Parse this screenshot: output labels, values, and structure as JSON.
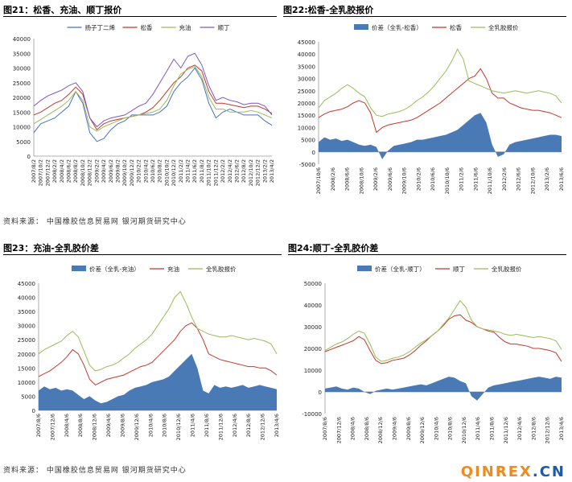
{
  "panels": {
    "p21": {
      "title": "图21：松香、充油、顺丁报价"
    },
    "p22": {
      "title": "图22:松香-全乳胶报价"
    },
    "p23": {
      "title": "图23：充油-全乳胶价差"
    },
    "p24": {
      "title": "图24:顺丁-全乳胶价差"
    }
  },
  "sources": {
    "top": "资料来源：  中国橡胶信息贸易网   银河期货研究中心",
    "bottom": "资料来源：  中国橡胶信息贸易网   银河期货研究中心"
  },
  "watermark": {
    "part1": "QINREX",
    "part2": ".CN"
  },
  "chart_data": [
    {
      "id": "chart21",
      "type": "line",
      "ylim": [
        0,
        40000
      ],
      "yticks": [
        0,
        5000,
        10000,
        15000,
        20000,
        25000,
        30000,
        35000,
        40000
      ],
      "xticks": [
        "2007/8/2",
        "2007/10/2",
        "2007/12/2",
        "2008/2/2",
        "2008/4/2",
        "2008/6/2",
        "2008/8/2",
        "2008/10/2",
        "2008/12/2",
        "2009/2/2",
        "2009/4/2",
        "2009/6/2",
        "2009/8/2",
        "2009/10/2",
        "2009/12/2",
        "2010/2/2",
        "2010/4/2",
        "2010/6/2",
        "2010/8/2",
        "2010/10/2",
        "2010/12/2",
        "2011/2/2",
        "2011/4/2",
        "2011/6/2",
        "2011/8/2",
        "2011/10/2",
        "2011/12/2",
        "2012/2/2",
        "2012/4/2",
        "2012/6/2",
        "2012/8/2",
        "2012/10/2",
        "2012/12/2",
        "2013/2/2",
        "2013/4/2"
      ],
      "series": [
        {
          "name": "扬子丁二烯",
          "color": "#4472c4",
          "values": [
            8000,
            11000,
            12000,
            13000,
            15000,
            17000,
            22000,
            18000,
            8000,
            5000,
            6000,
            9000,
            11000,
            12000,
            14000,
            14000,
            14000,
            14000,
            15000,
            17000,
            22000,
            25000,
            27000,
            30000,
            26000,
            18000,
            13000,
            15000,
            16000,
            15000,
            14000,
            14000,
            14000,
            12000,
            10500
          ]
        },
        {
          "name": "松香",
          "color": "#c0392b",
          "values": [
            14000,
            15000,
            16500,
            18000,
            19000,
            21000,
            23500,
            21000,
            13000,
            9000,
            11000,
            12000,
            12500,
            13000,
            13500,
            14000,
            15000,
            16500,
            19000,
            22000,
            25000,
            27000,
            30000,
            31000,
            29000,
            22000,
            18000,
            18000,
            17500,
            17000,
            16500,
            17000,
            17000,
            16000,
            14500
          ]
        },
        {
          "name": "充油",
          "color": "#9bbb59",
          "values": [
            11000,
            12500,
            14000,
            15500,
            17000,
            19000,
            22000,
            19000,
            10000,
            8500,
            10000,
            11000,
            12000,
            13000,
            13500,
            14000,
            14500,
            15000,
            16000,
            19000,
            24000,
            28000,
            29500,
            30500,
            27000,
            20000,
            16000,
            16000,
            15000,
            15000,
            15000,
            15500,
            15000,
            14000,
            13000
          ]
        },
        {
          "name": "顺丁",
          "color": "#7e57c2",
          "values": [
            17000,
            19000,
            20500,
            21500,
            22500,
            24000,
            25000,
            22000,
            13000,
            10000,
            12000,
            13000,
            13500,
            14000,
            15500,
            17000,
            18000,
            21000,
            25000,
            29000,
            33000,
            30000,
            34000,
            35000,
            31000,
            24000,
            19000,
            20000,
            19000,
            18500,
            17500,
            18000,
            18000,
            17000,
            14000
          ]
        }
      ]
    },
    {
      "id": "chart22",
      "type": "line",
      "ylim": [
        -5000,
        45000
      ],
      "yticks": [
        -5000,
        0,
        5000,
        10000,
        15000,
        20000,
        25000,
        30000,
        35000,
        40000,
        45000
      ],
      "xticks": [
        "2007/10/6",
        "2008/2/6",
        "2008/6/6",
        "2008/10/6",
        "2009/2/6",
        "2009/6/6",
        "2009/10/6",
        "2010/2/6",
        "2010/6/6",
        "2010/10/6",
        "2011/2/6",
        "2011/6/6",
        "2011/10/6",
        "2012/2/6",
        "2012/6/6",
        "2012/10/6",
        "2013/2/6",
        "2013/6/6"
      ],
      "series": [
        {
          "name": "价差（全乳-松香）",
          "color": "#4a7ab5",
          "kind": "area",
          "values": [
            4000,
            6000,
            5000,
            5500,
            4500,
            5000,
            4000,
            3000,
            2500,
            3000,
            2000,
            -3000,
            500,
            2500,
            3000,
            3500,
            4000,
            5000,
            5000,
            5500,
            6000,
            6500,
            7000,
            8000,
            9000,
            11000,
            13000,
            15000,
            16000,
            12000,
            3000,
            -2000,
            -1000,
            3000,
            4000,
            4500,
            5000,
            5500,
            6000,
            6500,
            7000,
            7000,
            6500
          ]
        },
        {
          "name": "松香",
          "color": "#c0392b",
          "kind": "line",
          "values": [
            14000,
            15500,
            16500,
            17000,
            17500,
            18500,
            20000,
            21000,
            20000,
            16000,
            8000,
            10000,
            11000,
            11500,
            12000,
            12500,
            13000,
            14000,
            15500,
            17000,
            18500,
            20000,
            22000,
            24000,
            26000,
            28000,
            30000,
            31000,
            34000,
            30000,
            24000,
            22000,
            22000,
            20000,
            19000,
            18000,
            17500,
            17000,
            17000,
            16500,
            16000,
            15000,
            14000
          ]
        },
        {
          "name": "全乳胶报价",
          "color": "#9bbb59",
          "kind": "line",
          "values": [
            18000,
            21000,
            22500,
            24000,
            26000,
            27500,
            26000,
            24000,
            22500,
            18000,
            15000,
            14500,
            15500,
            16000,
            16500,
            17500,
            19000,
            21000,
            22500,
            24500,
            27000,
            30000,
            33000,
            37000,
            42000,
            38000,
            29000,
            28000,
            27000,
            26000,
            25000,
            24500,
            24000,
            24500,
            25000,
            24500,
            24000,
            24500,
            25000,
            24500,
            24000,
            23000,
            20000
          ]
        }
      ]
    },
    {
      "id": "chart23",
      "type": "line",
      "ylim": [
        0,
        45000
      ],
      "yticks": [
        0,
        5000,
        10000,
        15000,
        20000,
        25000,
        30000,
        35000,
        40000,
        45000
      ],
      "xticks": [
        "2007/8/6",
        "2007/12/6",
        "2008/4/6",
        "2008/8/6",
        "2008/12/6",
        "2009/4/6",
        "2009/8/6",
        "2009/12/6",
        "2010/4/6",
        "2010/8/6",
        "2010/12/6",
        "2011/4/6",
        "2011/8/6",
        "2011/12/6",
        "2012/4/6",
        "2012/8/6",
        "2012/12/6",
        "2013/4/6"
      ],
      "series": [
        {
          "name": "价差（全乳-充油）",
          "color": "#4a7ab5",
          "kind": "area",
          "values": [
            7000,
            8500,
            7500,
            8000,
            7000,
            7500,
            7000,
            5500,
            4000,
            5000,
            3500,
            2500,
            3000,
            4000,
            5000,
            5500,
            7000,
            8000,
            8500,
            9000,
            10000,
            10500,
            11000,
            12000,
            14000,
            16000,
            18000,
            20000,
            15000,
            7000,
            6000,
            9000,
            8000,
            8500,
            8000,
            8500,
            9000,
            8000,
            8500,
            9000,
            8500,
            8000,
            7500
          ]
        },
        {
          "name": "充油",
          "color": "#c0392b",
          "kind": "line",
          "values": [
            12000,
            13000,
            14000,
            15500,
            17000,
            19000,
            21500,
            20000,
            16000,
            11000,
            9000,
            10000,
            11000,
            11500,
            12000,
            12500,
            13500,
            14500,
            15500,
            16000,
            17000,
            19000,
            21000,
            23000,
            25000,
            28000,
            30000,
            31000,
            29000,
            25000,
            20000,
            19000,
            18000,
            17500,
            17000,
            16500,
            16000,
            15500,
            15500,
            15000,
            15000,
            14000,
            12500
          ]
        },
        {
          "name": "全乳胶报价",
          "color": "#9bbb59",
          "kind": "line",
          "values": [
            20000,
            21500,
            22500,
            23500,
            24500,
            26500,
            28000,
            26000,
            21000,
            16000,
            14000,
            14500,
            15500,
            16000,
            17000,
            18500,
            20000,
            22000,
            23500,
            25000,
            27000,
            30000,
            33000,
            36000,
            40000,
            42000,
            38000,
            33000,
            29000,
            28000,
            27000,
            26500,
            26000,
            26000,
            26500,
            26000,
            25500,
            25000,
            25500,
            25000,
            24500,
            23500,
            20000
          ]
        }
      ]
    },
    {
      "id": "chart24",
      "type": "line",
      "ylim": [
        -10000,
        50000
      ],
      "yticks": [
        -10000,
        0,
        10000,
        20000,
        30000,
        40000,
        50000
      ],
      "xticks": [
        "2007/8/6",
        "2007/12/6",
        "2008/4/6",
        "2008/8/6",
        "2008/12/6",
        "2009/4/6",
        "2009/8/6",
        "2009/12/6",
        "2010/4/6",
        "2010/8/6",
        "2010/12/6",
        "2011/4/6",
        "2011/8/6",
        "2011/12/6",
        "2012/4/6",
        "2012/8/6",
        "2012/12/6",
        "2013/4/6"
      ],
      "series": [
        {
          "name": "价差（全乳-顺丁）",
          "color": "#4a7ab5",
          "kind": "area",
          "values": [
            1500,
            2000,
            2500,
            1500,
            1000,
            2000,
            1500,
            0,
            -1000,
            500,
            1000,
            1500,
            1000,
            1500,
            2000,
            2500,
            3000,
            3500,
            3000,
            4000,
            5000,
            6000,
            7000,
            6500,
            5000,
            4000,
            -2000,
            -4000,
            -1000,
            2000,
            3000,
            3500,
            4000,
            4500,
            5000,
            5500,
            6000,
            6500,
            7000,
            6500,
            6000,
            7000,
            6500
          ]
        },
        {
          "name": "顺丁",
          "color": "#c0392b",
          "kind": "line",
          "values": [
            18500,
            19500,
            20500,
            21500,
            22500,
            23500,
            25500,
            24000,
            19000,
            14500,
            13000,
            13500,
            14500,
            15000,
            15500,
            17000,
            19000,
            21500,
            23500,
            26000,
            28000,
            30500,
            33500,
            35000,
            35500,
            33000,
            32000,
            30000,
            29000,
            28000,
            27500,
            25000,
            23000,
            22000,
            22000,
            21500,
            21000,
            20000,
            20000,
            19500,
            19000,
            18000,
            14000
          ]
        },
        {
          "name": "全乳胶报价",
          "color": "#9bbb59",
          "kind": "line",
          "values": [
            19000,
            20500,
            22000,
            23000,
            24500,
            26500,
            28000,
            27000,
            22000,
            16000,
            14000,
            14500,
            15500,
            16000,
            17000,
            18500,
            20500,
            22500,
            24000,
            26000,
            28000,
            31000,
            34000,
            38000,
            42000,
            39000,
            33000,
            30000,
            29000,
            28500,
            28000,
            27500,
            26500,
            26000,
            26500,
            26000,
            25500,
            25000,
            25500,
            25000,
            24500,
            23500,
            19500
          ]
        }
      ]
    }
  ]
}
